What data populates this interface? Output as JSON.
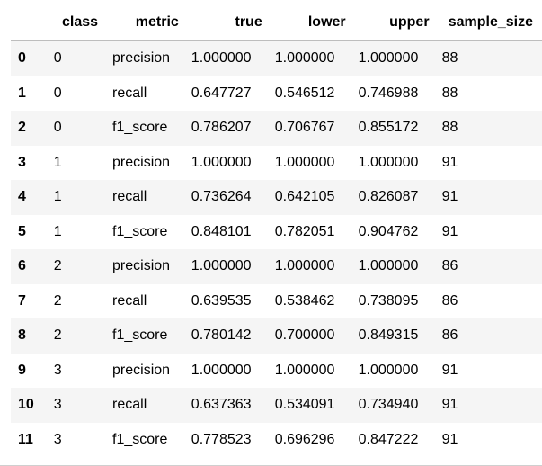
{
  "table": {
    "columns": {
      "index": "",
      "class": "class",
      "metric": "metric",
      "true": "true",
      "lower": "lower",
      "upper": "upper",
      "sample_size": "sample_size"
    },
    "rows": [
      {
        "index": "0",
        "class": "0",
        "metric": "precision",
        "true": "1.000000",
        "lower": "1.000000",
        "upper": "1.000000",
        "sample_size": "88"
      },
      {
        "index": "1",
        "class": "0",
        "metric": "recall",
        "true": "0.647727",
        "lower": "0.546512",
        "upper": "0.746988",
        "sample_size": "88"
      },
      {
        "index": "2",
        "class": "0",
        "metric": "f1_score",
        "true": "0.786207",
        "lower": "0.706767",
        "upper": "0.855172",
        "sample_size": "88"
      },
      {
        "index": "3",
        "class": "1",
        "metric": "precision",
        "true": "1.000000",
        "lower": "1.000000",
        "upper": "1.000000",
        "sample_size": "91"
      },
      {
        "index": "4",
        "class": "1",
        "metric": "recall",
        "true": "0.736264",
        "lower": "0.642105",
        "upper": "0.826087",
        "sample_size": "91"
      },
      {
        "index": "5",
        "class": "1",
        "metric": "f1_score",
        "true": "0.848101",
        "lower": "0.782051",
        "upper": "0.904762",
        "sample_size": "91"
      },
      {
        "index": "6",
        "class": "2",
        "metric": "precision",
        "true": "1.000000",
        "lower": "1.000000",
        "upper": "1.000000",
        "sample_size": "86"
      },
      {
        "index": "7",
        "class": "2",
        "metric": "recall",
        "true": "0.639535",
        "lower": "0.538462",
        "upper": "0.738095",
        "sample_size": "86"
      },
      {
        "index": "8",
        "class": "2",
        "metric": "f1_score",
        "true": "0.780142",
        "lower": "0.700000",
        "upper": "0.849315",
        "sample_size": "86"
      },
      {
        "index": "9",
        "class": "3",
        "metric": "precision",
        "true": "1.000000",
        "lower": "1.000000",
        "upper": "1.000000",
        "sample_size": "91"
      },
      {
        "index": "10",
        "class": "3",
        "metric": "recall",
        "true": "0.637363",
        "lower": "0.534091",
        "upper": "0.734940",
        "sample_size": "91"
      },
      {
        "index": "11",
        "class": "3",
        "metric": "f1_score",
        "true": "0.778523",
        "lower": "0.696296",
        "upper": "0.847222",
        "sample_size": "91"
      }
    ]
  },
  "colors": {
    "stripe": "#f5f5f5",
    "background": "#ffffff",
    "header_rule": "#bdbdbd"
  }
}
